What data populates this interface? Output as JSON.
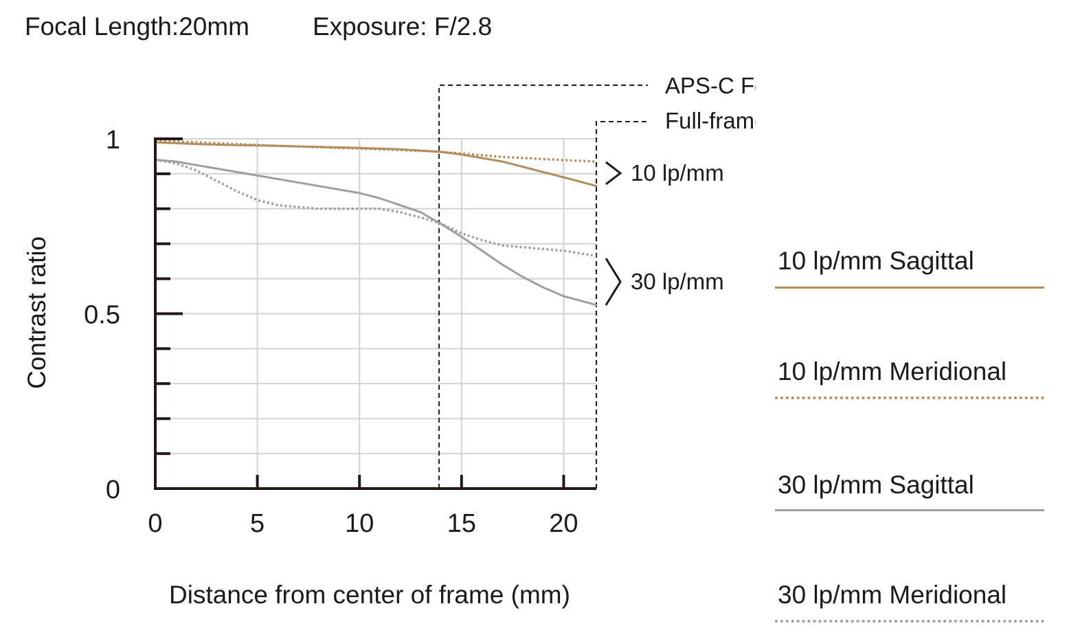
{
  "header": {
    "focal_length": "Focal Length:20mm",
    "exposure": "Exposure: F/2.8"
  },
  "colors": {
    "lp10": "#b48c5a",
    "lp30": "#9e9e9e",
    "axis": "#231815",
    "grid": "#d2d2d2",
    "text": "#1a1a1a"
  },
  "chart_data": {
    "type": "line",
    "xlabel": "Distance from center of frame (mm)",
    "ylabel": "Contrast ratio",
    "xlim": [
      0,
      21.6
    ],
    "ylim": [
      0,
      1
    ],
    "x_ticks": [
      0,
      5,
      10,
      15,
      20
    ],
    "x_tick_labels": [
      "0",
      "5",
      "10",
      "15",
      "20"
    ],
    "y_tick_labels": [
      {
        "value": 0,
        "label": "0"
      },
      {
        "value": 0.5,
        "label": "0.5"
      },
      {
        "value": 1,
        "label": "1"
      }
    ],
    "y_minor_step": 0.1,
    "grid": true,
    "format_markers": [
      {
        "label": "APS-C Format",
        "x": 13.9
      },
      {
        "label": "Full-frame Format",
        "x": 21.6
      }
    ],
    "group_labels": [
      "10 lp/mm",
      "30 lp/mm"
    ],
    "series": [
      {
        "name": "10 lp/mm Sagittal",
        "color_key": "lp10",
        "style": "solid",
        "x": [
          0,
          2,
          4,
          6,
          8,
          10,
          12,
          13.9,
          15,
          16,
          17,
          18,
          19,
          20,
          21.6
        ],
        "y": [
          0.99,
          0.985,
          0.982,
          0.98,
          0.977,
          0.974,
          0.97,
          0.963,
          0.955,
          0.945,
          0.935,
          0.92,
          0.905,
          0.89,
          0.865
        ]
      },
      {
        "name": "10 lp/mm Meridional",
        "color_key": "lp10",
        "style": "dotted",
        "x": [
          0,
          2,
          4,
          6,
          8,
          10,
          12,
          13.9,
          15,
          16,
          17,
          18,
          19,
          20,
          21.6
        ],
        "y": [
          0.995,
          0.99,
          0.985,
          0.98,
          0.976,
          0.972,
          0.968,
          0.963,
          0.958,
          0.953,
          0.948,
          0.945,
          0.942,
          0.939,
          0.935
        ]
      },
      {
        "name": "30 lp/mm Sagittal",
        "color_key": "lp30",
        "style": "solid",
        "x": [
          0,
          1,
          2,
          4,
          6,
          8,
          10,
          11,
          12,
          13,
          13.9,
          15,
          16,
          17,
          18,
          19,
          20,
          21.6
        ],
        "y": [
          0.94,
          0.935,
          0.925,
          0.905,
          0.885,
          0.865,
          0.845,
          0.83,
          0.81,
          0.79,
          0.76,
          0.72,
          0.68,
          0.64,
          0.605,
          0.575,
          0.55,
          0.525
        ]
      },
      {
        "name": "30 lp/mm Meridional",
        "color_key": "lp30",
        "style": "dotted",
        "x": [
          0,
          1,
          2,
          3,
          4,
          5,
          6,
          7,
          8,
          9,
          10,
          11,
          12,
          13,
          13.9,
          15,
          16,
          17,
          18,
          19,
          20,
          21.6
        ],
        "y": [
          0.94,
          0.93,
          0.91,
          0.88,
          0.85,
          0.825,
          0.81,
          0.805,
          0.8,
          0.8,
          0.8,
          0.8,
          0.79,
          0.775,
          0.76,
          0.73,
          0.71,
          0.695,
          0.69,
          0.685,
          0.68,
          0.665
        ]
      }
    ]
  }
}
